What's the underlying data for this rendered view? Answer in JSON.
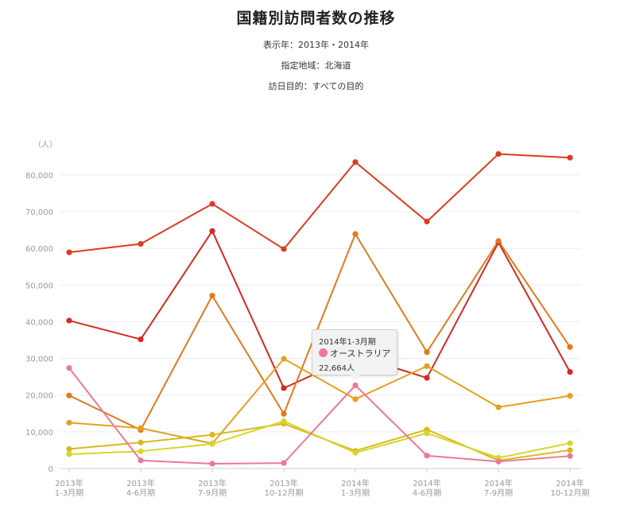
{
  "header": {
    "title": "国籍別訪問者数の推移",
    "display_year": "表示年：2013年・2014年",
    "region": "指定地域：北海道",
    "purpose": "訪日目的：すべての目的"
  },
  "tooltip": {
    "period": "2014年1-3月期",
    "series": "オーストラリア",
    "value": "22,664人",
    "color": "#ee7799"
  },
  "chart_data": {
    "type": "line",
    "ylabel": "（人）",
    "ylim": [
      0,
      85000
    ],
    "yticks": [
      "0",
      "10,000",
      "20,000",
      "30,000",
      "40,000",
      "50,000",
      "60,000",
      "70,000",
      "80,000"
    ],
    "ytick_values": [
      0,
      10000,
      20000,
      30000,
      40000,
      50000,
      60000,
      70000,
      80000
    ],
    "categories": [
      [
        "2013年",
        "1-3月期"
      ],
      [
        "2013年",
        "4-6月期"
      ],
      [
        "2013年",
        "7-9月期"
      ],
      [
        "2013年",
        "10-12月期"
      ],
      [
        "2014年",
        "1-3月期"
      ],
      [
        "2014年",
        "4-6月期"
      ],
      [
        "2014年",
        "7-9月期"
      ],
      [
        "2014年",
        "10-12月期"
      ]
    ],
    "grid": true,
    "series": [
      {
        "color": "#dd3a22",
        "values": [
          58900,
          61200,
          72100,
          59800,
          83500,
          67300,
          85700,
          84700
        ]
      },
      {
        "color": "#d42a22",
        "values": [
          40300,
          35200,
          64700,
          21900,
          30800,
          24700,
          61600,
          26300
        ]
      },
      {
        "color": "#e07a1c",
        "values": [
          19900,
          10500,
          47100,
          14900,
          63900,
          31700,
          62000,
          33100
        ]
      },
      {
        "color": "#e6a01e",
        "values": [
          12500,
          11000,
          6800,
          29900,
          18900,
          27900,
          16700,
          19800
        ]
      },
      {
        "color": "#d9b81c",
        "values": [
          5300,
          7100,
          9200,
          12200,
          4800,
          10600,
          2200,
          5000
        ]
      },
      {
        "color": "#d6d62c",
        "values": [
          3900,
          4700,
          6700,
          12900,
          4300,
          9600,
          2900,
          6900
        ]
      },
      {
        "color": "#ee7799",
        "values": [
          27400,
          2200,
          1300,
          1500,
          22664,
          3500,
          1900,
          3400
        ]
      }
    ]
  }
}
